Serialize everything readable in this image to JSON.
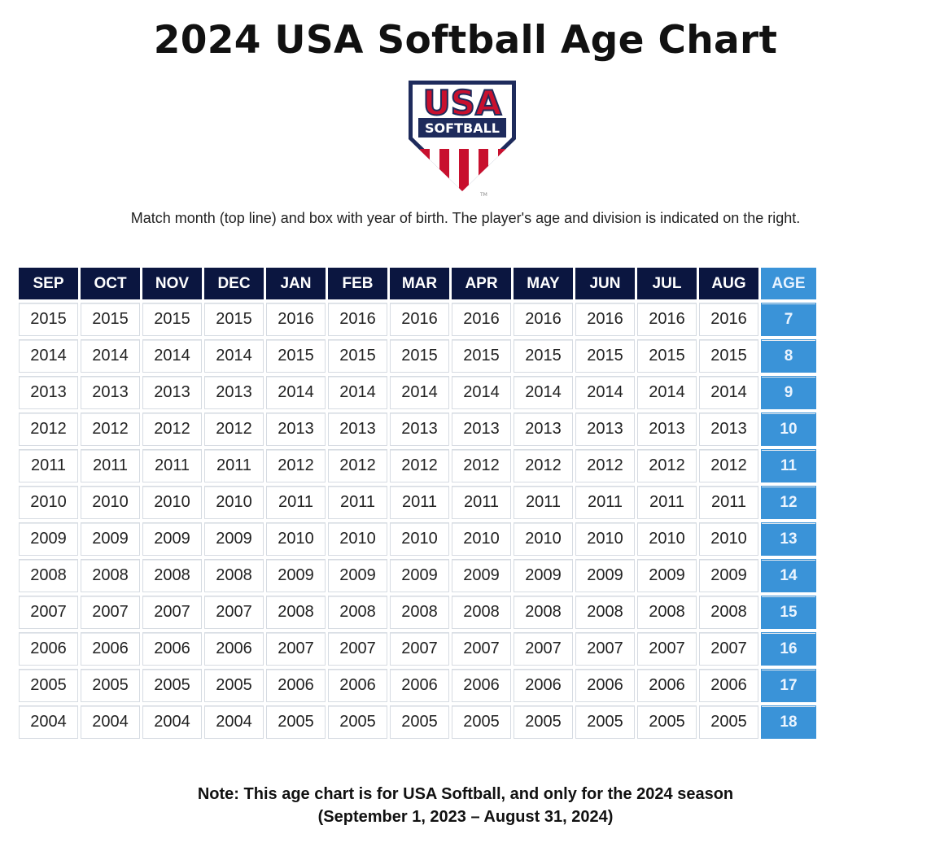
{
  "title": "2024 USA Softball Age Chart",
  "logo": {
    "word_top": "USA",
    "word_bottom": "SOFTBALL",
    "mark": "TM"
  },
  "instructions": "Match month (top line) and box with year of birth. The player's age and division is indicated on the right.",
  "table": {
    "months": [
      "SEP",
      "OCT",
      "NOV",
      "DEC",
      "JAN",
      "FEB",
      "MAR",
      "APR",
      "MAY",
      "JUN",
      "JUL",
      "AUG"
    ],
    "age_header": "AGE",
    "rows": [
      {
        "early": "2015",
        "late": "2016",
        "age": "7"
      },
      {
        "early": "2014",
        "late": "2015",
        "age": "8"
      },
      {
        "early": "2013",
        "late": "2014",
        "age": "9"
      },
      {
        "early": "2012",
        "late": "2013",
        "age": "10"
      },
      {
        "early": "2011",
        "late": "2012",
        "age": "11"
      },
      {
        "early": "2010",
        "late": "2011",
        "age": "12"
      },
      {
        "early": "2009",
        "late": "2010",
        "age": "13"
      },
      {
        "early": "2008",
        "late": "2009",
        "age": "14"
      },
      {
        "early": "2007",
        "late": "2008",
        "age": "15"
      },
      {
        "early": "2006",
        "late": "2007",
        "age": "16"
      },
      {
        "early": "2005",
        "late": "2006",
        "age": "17"
      },
      {
        "early": "2004",
        "late": "2005",
        "age": "18"
      }
    ]
  },
  "note": {
    "line1": "Note: This age chart is for USA Softball, and only for the 2024 season",
    "line2": "(September 1, 2023 – August 31, 2024)"
  },
  "colors": {
    "navy": "#0b1640",
    "age_blue": "#3a93d8",
    "logo_red": "#c8102e"
  }
}
